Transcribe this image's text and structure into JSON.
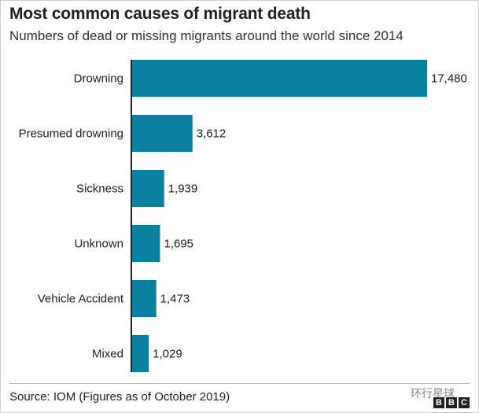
{
  "title": "Most common causes of migrant death",
  "subtitle": "Numbers of dead or missing migrants around the world since 2014",
  "source": "Source: IOM (Figures as of October 2019)",
  "watermark": "环行星球",
  "logo": [
    "B",
    "B",
    "C"
  ],
  "colors": {
    "bar": "#0a7fa0",
    "axis": "#222222"
  },
  "chart_data": {
    "type": "bar",
    "orientation": "horizontal",
    "title": "Most common causes of migrant death",
    "subtitle": "Numbers of dead or missing migrants around the world since 2014",
    "categories": [
      "Drowning",
      "Presumed drowning",
      "Sickness",
      "Unknown",
      "Vehicle Accident",
      "Mixed"
    ],
    "values": [
      17480,
      3612,
      1939,
      1695,
      1473,
      1029
    ],
    "value_labels": [
      "17,480",
      "3,612",
      "1,939",
      "1,695",
      "1,473",
      "1,029"
    ],
    "xlabel": "",
    "ylabel": "",
    "xlim": [
      0,
      17480
    ],
    "grid": false
  }
}
